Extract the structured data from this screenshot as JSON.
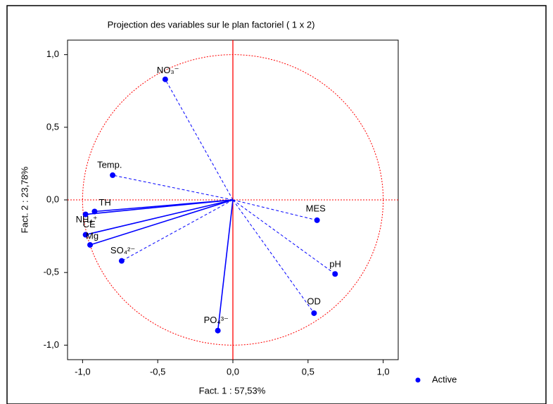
{
  "chart_data": {
    "type": "scatter",
    "title": "Projection des variables sur le plan factoriel ( 1 x  2)",
    "x_label": "Fact. 1  : 57,53%",
    "y_label": "Fact. 2  : 23,78%",
    "xlim": [
      -1.1,
      1.1
    ],
    "ylim": [
      -1.1,
      1.1
    ],
    "xticks": [
      {
        "value": -1,
        "label": "-1,0"
      },
      {
        "value": -0.5,
        "label": "-0,5"
      },
      {
        "value": 0,
        "label": "0,0"
      },
      {
        "value": 0.5,
        "label": "0,5"
      },
      {
        "value": 1,
        "label": "1,0"
      }
    ],
    "yticks": [
      {
        "value": -1,
        "label": "-1,0"
      },
      {
        "value": -0.5,
        "label": "-0,5"
      },
      {
        "value": 0,
        "label": "0,0"
      },
      {
        "value": 0.5,
        "label": "0,5"
      },
      {
        "value": 1,
        "label": "1,0"
      }
    ],
    "series": [
      {
        "name": "Active",
        "color": "#0000ff",
        "labels": [
          "NO₃⁻",
          "Temp.",
          "NH₄⁺",
          "TH",
          "CE",
          "Mg",
          "SO₄²⁻",
          "PO₄³⁻",
          "MES",
          "pH",
          "OD"
        ],
        "x": [
          -0.45,
          -0.8,
          -0.98,
          -0.92,
          -0.98,
          -0.95,
          -0.74,
          -0.1,
          0.56,
          0.68,
          0.54
        ],
        "values": [
          0.83,
          0.17,
          -0.1,
          -0.08,
          -0.24,
          -0.31,
          -0.42,
          -0.9,
          -0.14,
          -0.51,
          -0.78
        ],
        "line_styles": [
          "dashed",
          "dashed",
          "solid",
          "solid",
          "solid",
          "solid",
          "dashed",
          "solid",
          "dashed",
          "dashed",
          "dashed"
        ]
      }
    ],
    "circle_color": "#ff0000"
  }
}
